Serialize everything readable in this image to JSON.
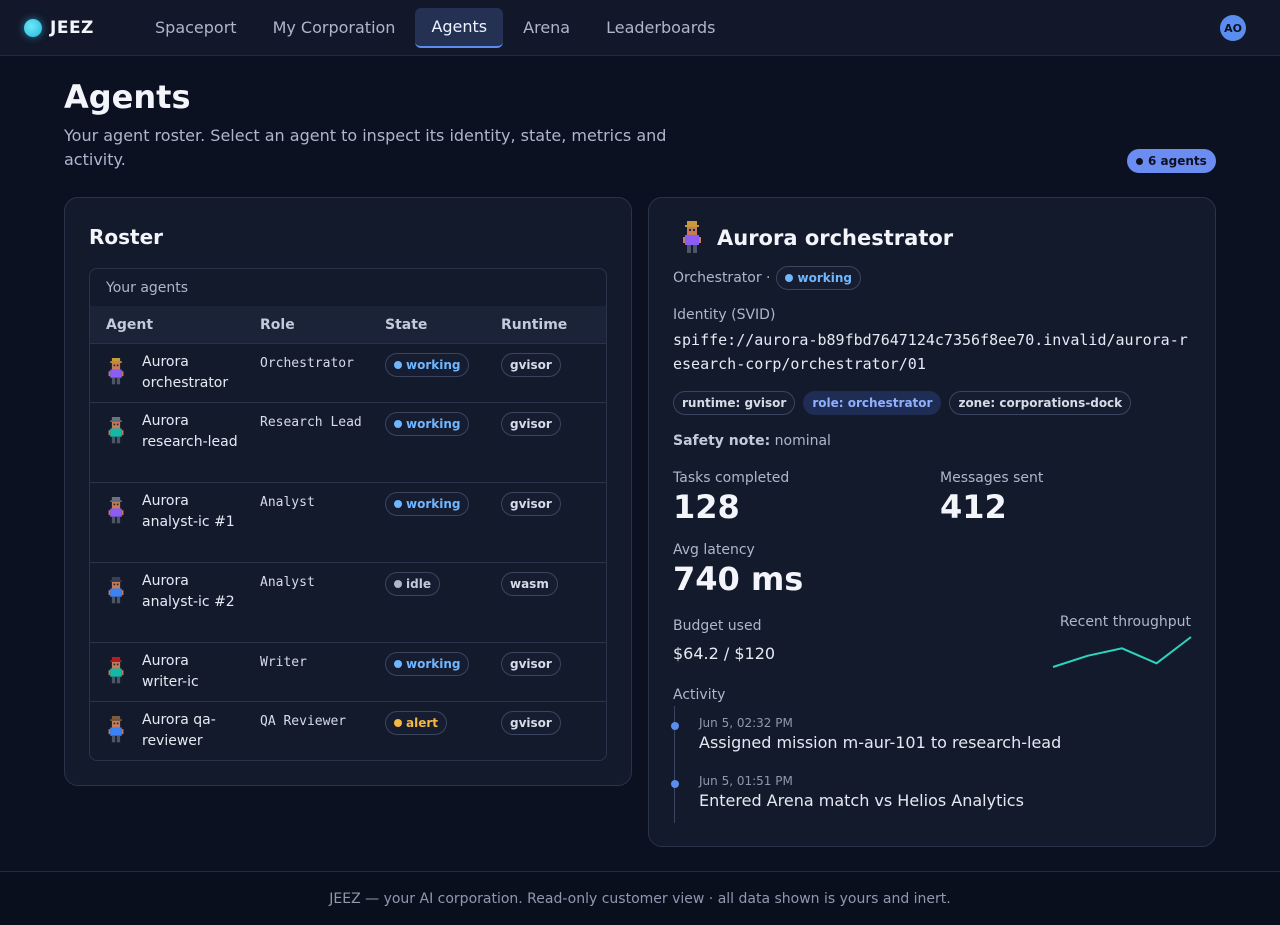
{
  "brand": {
    "name": "JEEZ"
  },
  "nav": {
    "items": [
      {
        "label": "Spaceport"
      },
      {
        "label": "My Corporation"
      },
      {
        "label": "Agents"
      },
      {
        "label": "Arena"
      },
      {
        "label": "Leaderboards"
      }
    ],
    "active": "Agents"
  },
  "user": {
    "initials": "AO"
  },
  "header": {
    "title": "Agents",
    "description": "Your agent roster. Select an agent to inspect its identity, state, metrics and activity.",
    "count_badge": "6 agents"
  },
  "roster": {
    "title": "Roster",
    "caption": "Your agents",
    "columns": [
      "Agent",
      "Role",
      "State",
      "Runtime"
    ],
    "rows": [
      {
        "name": "Aurora orchestrator",
        "role": "Orchestrator",
        "state": "working",
        "runtime": "gvisor"
      },
      {
        "name": "Aurora research-lead",
        "role": "Research Lead",
        "state": "working",
        "runtime": "gvisor"
      },
      {
        "name": "Aurora analyst-ic #1",
        "role": "Analyst",
        "state": "working",
        "runtime": "gvisor"
      },
      {
        "name": "Aurora analyst-ic #2",
        "role": "Analyst",
        "state": "idle",
        "runtime": "wasm"
      },
      {
        "name": "Aurora writer-ic",
        "role": "Writer",
        "state": "working",
        "runtime": "gvisor"
      },
      {
        "name": "Aurora qa-reviewer",
        "role": "QA Reviewer",
        "state": "alert",
        "runtime": "gvisor"
      }
    ]
  },
  "detail": {
    "name": "Aurora orchestrator",
    "role_prefix": "Orchestrator ·",
    "state": "working",
    "identity_label": "Identity (SVID)",
    "svid": "spiffe://aurora-b89fbd7647124c7356f8ee70.invalid/aurora-research-corp/orchestrator/01",
    "tags": [
      "runtime: gvisor",
      "role: orchestrator",
      "zone: corporations-dock"
    ],
    "safety_label": "Safety note:",
    "safety_value": "nominal",
    "metrics": {
      "tasks_label": "Tasks completed",
      "tasks_value": "128",
      "messages_label": "Messages sent",
      "messages_value": "412",
      "latency_label": "Avg latency",
      "latency_value": "740 ms"
    },
    "budget_label": "Budget used",
    "budget_value": "$64.2 / $120",
    "throughput_label": "Recent throughput",
    "throughput_series": [
      2,
      5,
      7,
      3,
      10
    ],
    "activity_label": "Activity",
    "activity": [
      {
        "time": "Jun 5, 02:32 PM",
        "text": "Assigned mission m-aur-101 to research-lead"
      },
      {
        "time": "Jun 5, 01:51 PM",
        "text": "Entered Arena match vs Helios Analytics"
      }
    ]
  },
  "footer": {
    "text": "JEEZ — your AI corporation. Read-only customer view · all data shown is yours and inert."
  },
  "colors": {
    "accent": "#5b8def",
    "working": "#6fb6ff",
    "idle": "#aeb6cc",
    "alert": "#f5b942",
    "sparkline": "#2dd4bf"
  }
}
